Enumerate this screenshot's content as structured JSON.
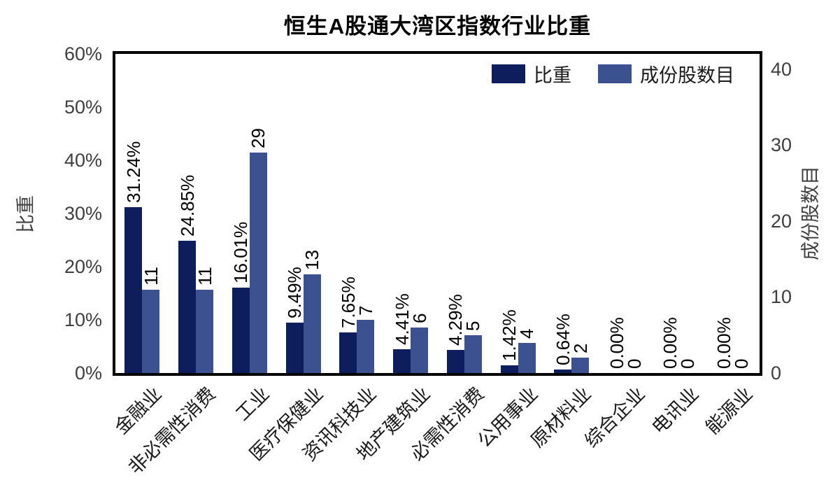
{
  "chart_data": {
    "type": "bar",
    "title": "恒生A股通大湾区指数行业比重",
    "categories": [
      "金融业",
      "非必需性消费",
      "工业",
      "医疗保健业",
      "资讯科技业",
      "地产建筑业",
      "必需性消费",
      "公用事业",
      "原材料业",
      "综合企业",
      "电讯业",
      "能源业"
    ],
    "series": [
      {
        "name": "比重",
        "axis": "left",
        "color": "#0e1d5c",
        "values": [
          31.24,
          24.85,
          16.01,
          9.49,
          7.65,
          4.41,
          4.29,
          1.42,
          0.64,
          0,
          0,
          0
        ],
        "labels": [
          "31.24%",
          "24.85%",
          "16.01%",
          "9.49%",
          "7.65%",
          "4.41%",
          "4.29%",
          "1.42%",
          "0.64%",
          "0.00%",
          "0.00%",
          "0.00%"
        ]
      },
      {
        "name": "成份股数目",
        "axis": "right",
        "color": "#3c5190",
        "values": [
          11,
          11,
          29,
          13,
          7,
          6,
          5,
          4,
          2,
          0,
          0,
          0
        ],
        "labels": [
          "11",
          "11",
          "29",
          "13",
          "7",
          "6",
          "5",
          "4",
          "2",
          "0",
          "0",
          "0"
        ]
      }
    ],
    "left_axis": {
      "label": "比重",
      "tick_values": [
        0,
        10,
        20,
        30,
        40,
        50,
        60
      ],
      "tick_labels": [
        "0%",
        "10%",
        "20%",
        "30%",
        "40%",
        "50%",
        "60%"
      ],
      "max": 60
    },
    "right_axis": {
      "label": "成份股数目",
      "tick_values": [
        0,
        10,
        20,
        30,
        40
      ],
      "tick_labels": [
        "0",
        "10",
        "20",
        "30",
        "40"
      ],
      "max": 42
    },
    "legend": [
      {
        "label": "比重",
        "color": "#0e1d5c"
      },
      {
        "label": "成份股数目",
        "color": "#3c5190"
      }
    ],
    "legend_position": "top-right",
    "grid": false,
    "frame_color": "#000000",
    "tick_text_color": "#3f3f3f"
  }
}
